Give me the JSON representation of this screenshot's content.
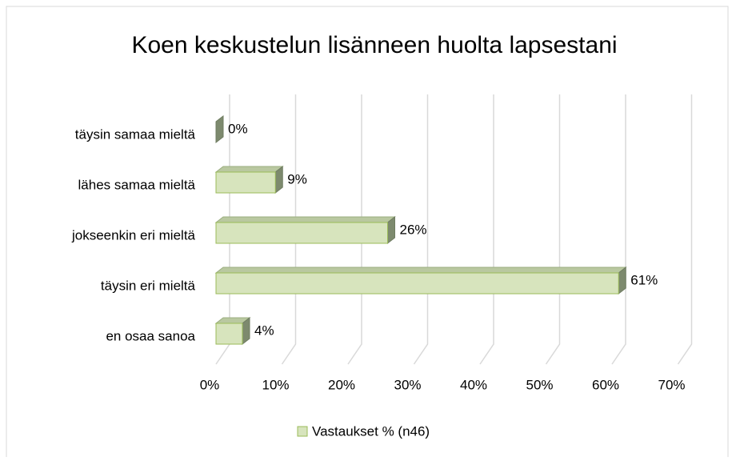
{
  "chart_data": {
    "type": "bar",
    "orientation": "horizontal",
    "title": "Koen keskustelun lisänneen huolta lapsestani",
    "categories": [
      "täysin samaa mieltä",
      "lähes samaa mieltä",
      "jokseenkin eri mieltä",
      "täysin eri mieltä",
      "en osaa sanoa"
    ],
    "series": [
      {
        "name": "Vastaukset % (n46)",
        "color": "#d7e4bd",
        "values": [
          0,
          9,
          26,
          61,
          4
        ],
        "value_labels": [
          "0%",
          "9%",
          "26%",
          "61%",
          "4%"
        ]
      }
    ],
    "xlim": [
      0,
      70
    ],
    "xticks": [
      {
        "value": 0,
        "label": "0%"
      },
      {
        "value": 10,
        "label": "10%"
      },
      {
        "value": 20,
        "label": "20%"
      },
      {
        "value": 30,
        "label": "30%"
      },
      {
        "value": 40,
        "label": "40%"
      },
      {
        "value": 50,
        "label": "50%"
      },
      {
        "value": 60,
        "label": "60%"
      },
      {
        "value": 70,
        "label": "70%"
      }
    ],
    "grid": true,
    "legend": "bottom"
  }
}
